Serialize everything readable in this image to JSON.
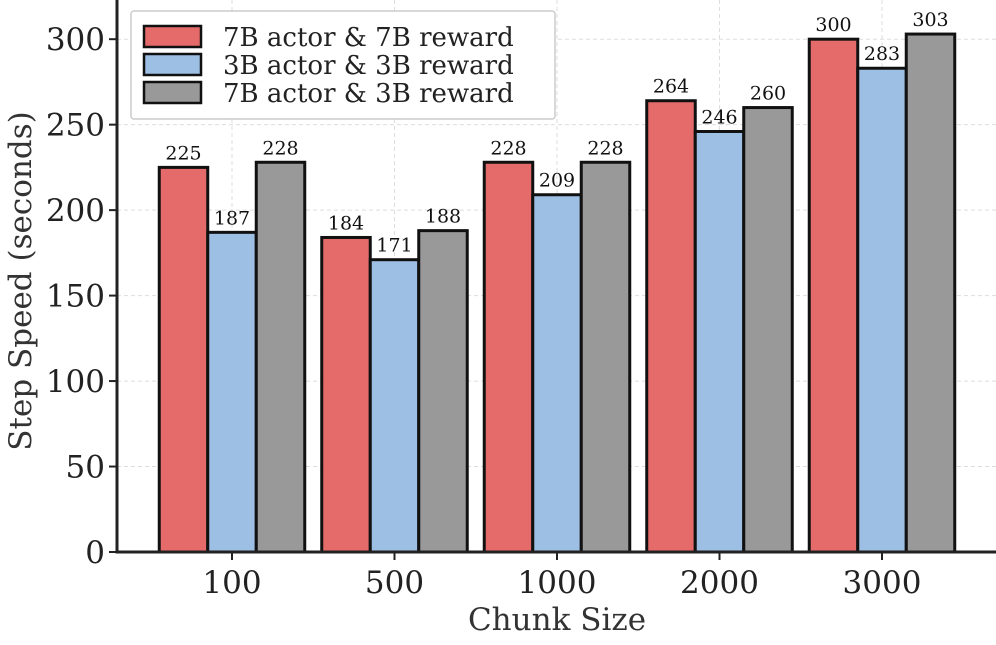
{
  "chart_data": {
    "type": "bar",
    "categories": [
      "100",
      "500",
      "1000",
      "2000",
      "3000"
    ],
    "series": [
      {
        "name": "7B actor & 7B reward",
        "color": "#e56b6b",
        "values": [
          225,
          184,
          228,
          264,
          300
        ]
      },
      {
        "name": "3B actor & 3B reward",
        "color": "#9dbfe3",
        "values": [
          187,
          171,
          209,
          246,
          283
        ]
      },
      {
        "name": "7B actor & 3B reward",
        "color": "#999999",
        "values": [
          228,
          188,
          228,
          260,
          303
        ]
      }
    ],
    "xlabel": "Chunk Size",
    "ylabel": "Step Speed (seconds)",
    "ylim": [
      0,
      320
    ],
    "yticks": [
      0,
      50,
      100,
      150,
      200,
      250,
      300
    ],
    "grid": true,
    "legend_position": "top-left"
  }
}
